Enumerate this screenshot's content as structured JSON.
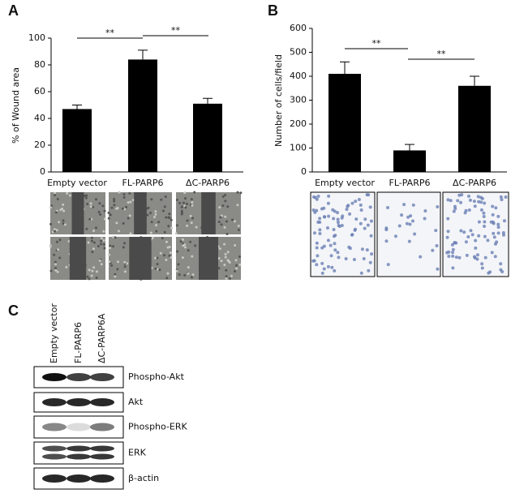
{
  "panels": {
    "a": "A",
    "b": "B",
    "c": "C"
  },
  "chart_data": [
    {
      "type": "bar",
      "ylabel": "% of Wound area",
      "categories": [
        "Empty vector",
        "FL-PARP6",
        "ΔC-PARP6"
      ],
      "values": [
        47,
        84,
        51
      ],
      "errors": [
        3,
        7,
        4
      ],
      "color": "#000000",
      "ylim": [
        0,
        100
      ],
      "yticks": [
        0,
        20,
        40,
        60,
        80,
        100
      ],
      "annotations": [
        "**",
        "**"
      ]
    },
    {
      "type": "bar",
      "ylabel": "Number of cells/field",
      "categories": [
        "Empty vector",
        "FL-PARP6",
        "ΔC-PARP6"
      ],
      "values": [
        410,
        90,
        360
      ],
      "errors": [
        50,
        25,
        40
      ],
      "color": "#000000",
      "ylim": [
        0,
        600
      ],
      "yticks": [
        0,
        100,
        200,
        300,
        400,
        500,
        600
      ],
      "annotations": [
        "**",
        "**"
      ]
    }
  ],
  "blot": {
    "lanes": [
      "Empty vector",
      "FL-PARP6",
      "ΔC-PARP6A"
    ],
    "rows": [
      "Phospho-Akt",
      "Akt",
      "Phospho-ERK",
      "ERK",
      "β-actin"
    ]
  }
}
